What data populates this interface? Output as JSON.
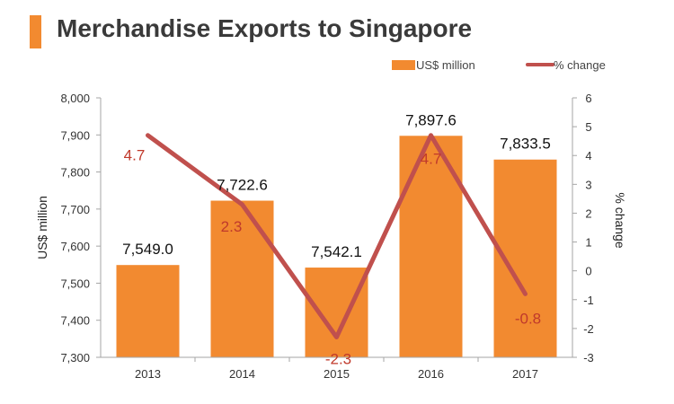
{
  "header": {
    "title": "Merchandise Exports to Singapore"
  },
  "colors": {
    "accent": "#f28a30",
    "bar": "#f28a30",
    "line": "#c0504d",
    "line_label": "#c0392b",
    "axis": "#a6a6a6"
  },
  "chart_data": {
    "type": "bar",
    "title": "Merchandise Exports to Singapore",
    "categories": [
      "2013",
      "2014",
      "2015",
      "2016",
      "2017"
    ],
    "series": [
      {
        "name": "US$ million",
        "type": "bar",
        "axis": "left",
        "values": [
          7549.0,
          7722.6,
          7542.1,
          7897.6,
          7833.5
        ],
        "labels": [
          "7,549.0",
          "7,722.6",
          "7,542.1",
          "7,897.6",
          "7,833.5"
        ]
      },
      {
        "name": "% change",
        "type": "line",
        "axis": "right",
        "values": [
          4.7,
          2.3,
          -2.3,
          4.7,
          -0.8
        ],
        "labels": [
          "4.7",
          "2.3",
          "-2.3",
          "4.7",
          "-0.8"
        ]
      }
    ],
    "ylabel": "US$ million",
    "y2label": "% change",
    "ylim": [
      7300,
      8000
    ],
    "y2lim": [
      -3,
      6
    ],
    "yticks": [
      "7,300",
      "7,400",
      "7,500",
      "7,600",
      "7,700",
      "7,800",
      "7,900",
      "8,000"
    ],
    "y2ticks": [
      "-3",
      "-2",
      "-1",
      "0",
      "1",
      "2",
      "3",
      "4",
      "5",
      "6"
    ],
    "grid": false,
    "legend": "top-right"
  }
}
